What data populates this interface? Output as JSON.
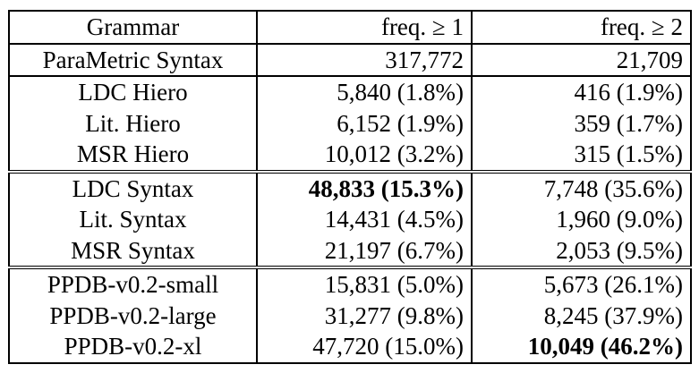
{
  "table": {
    "headers": [
      "Grammar",
      "freq. ≥ 1",
      "freq. ≥ 2"
    ],
    "parametric_row": [
      "ParaMetric Syntax",
      "317,772",
      "21,709"
    ],
    "hiero_rows": [
      [
        "LDC Hiero",
        "5,840 (1.8%)",
        "416 (1.9%)"
      ],
      [
        "Lit. Hiero",
        "6,152 (1.9%)",
        "359 (1.7%)"
      ],
      [
        "MSR Hiero",
        "10,012 (3.2%)",
        "315 (1.5%)"
      ]
    ],
    "syntax_rows": [
      [
        "LDC Syntax",
        "48,833 (15.3%)",
        "7,748 (35.6%)"
      ],
      [
        "Lit. Syntax",
        "14,431 (4.5%)",
        "1,960 (9.0%)"
      ],
      [
        "MSR Syntax",
        "21,197 (6.7%)",
        "2,053 (9.5%)"
      ]
    ],
    "ppdb_rows": [
      [
        "PPDB-v0.2-small",
        "15,831 (5.0%)",
        "5,673 (26.1%)"
      ],
      [
        "PPDB-v0.2-large",
        "31,277 (9.8%)",
        "8,245 (37.9%)"
      ],
      [
        "PPDB-v0.2-xl",
        "47,720 (15.0%)",
        "10,049 (46.2%)"
      ]
    ]
  }
}
